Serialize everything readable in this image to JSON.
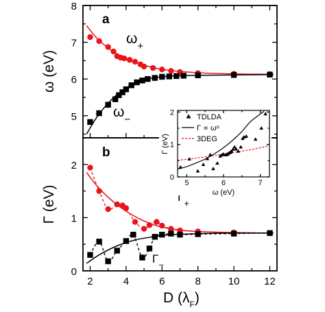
{
  "chart_data": [
    {
      "type": "scatter",
      "panel_label": "a",
      "xlabel": "D (λF)",
      "ylabel": "ω (eV)",
      "xlim": [
        1.6,
        12.4
      ],
      "ylim": [
        4.4,
        8.0
      ],
      "x_ticks": [
        "2",
        "4",
        "6",
        "8",
        "10",
        "12"
      ],
      "y_ticks": [
        "5",
        "6",
        "7",
        "8"
      ],
      "series": [
        {
          "name": "ω+",
          "color": "#e8141a",
          "marker": "circle",
          "points": [
            [
              2.0,
              7.14
            ],
            [
              2.5,
              7.03
            ],
            [
              3.0,
              6.87
            ],
            [
              3.3,
              6.75
            ],
            [
              3.5,
              6.62
            ],
            [
              3.7,
              6.58
            ],
            [
              3.9,
              6.56
            ],
            [
              4.2,
              6.52
            ],
            [
              4.5,
              6.47
            ],
            [
              4.8,
              6.4
            ],
            [
              5.0,
              6.34
            ],
            [
              5.5,
              6.3
            ],
            [
              6.0,
              6.26
            ],
            [
              6.5,
              6.22
            ],
            [
              7.0,
              6.19
            ],
            [
              8.0,
              6.16
            ],
            [
              10.0,
              6.14
            ],
            [
              12.0,
              6.13
            ]
          ],
          "fit": [
            [
              1.8,
              7.45
            ],
            [
              2.5,
              7.05
            ],
            [
              3.5,
              6.68
            ],
            [
              4.5,
              6.45
            ],
            [
              5.5,
              6.31
            ],
            [
              6.5,
              6.23
            ],
            [
              8.0,
              6.17
            ],
            [
              10.0,
              6.14
            ],
            [
              12.2,
              6.13
            ]
          ]
        },
        {
          "name": "ω−",
          "color": "#000000",
          "marker": "square",
          "points": [
            [
              2.0,
              4.83
            ],
            [
              2.5,
              5.07
            ],
            [
              3.0,
              5.3
            ],
            [
              3.4,
              5.45
            ],
            [
              3.6,
              5.56
            ],
            [
              3.8,
              5.64
            ],
            [
              4.0,
              5.72
            ],
            [
              4.3,
              5.83
            ],
            [
              4.6,
              5.91
            ],
            [
              4.9,
              5.96
            ],
            [
              5.2,
              6.0
            ],
            [
              5.6,
              6.03
            ],
            [
              6.0,
              6.06
            ],
            [
              6.4,
              6.07
            ],
            [
              6.8,
              6.08
            ],
            [
              7.2,
              6.09
            ],
            [
              8.0,
              6.1
            ],
            [
              10.0,
              6.11
            ],
            [
              12.0,
              6.12
            ]
          ],
          "fit": [
            [
              1.8,
              4.5
            ],
            [
              2.5,
              5.05
            ],
            [
              3.5,
              5.58
            ],
            [
              4.5,
              5.89
            ],
            [
              5.5,
              6.03
            ],
            [
              6.5,
              6.08
            ],
            [
              8.0,
              6.1
            ],
            [
              10.0,
              6.11
            ],
            [
              12.2,
              6.12
            ]
          ]
        }
      ]
    },
    {
      "type": "scatter",
      "panel_label": "b",
      "xlabel": "D (λF)",
      "ylabel": "Γ (eV)",
      "xlim": [
        1.6,
        12.4
      ],
      "ylim": [
        0.0,
        2.5
      ],
      "x_ticks": [
        "2",
        "4",
        "6",
        "8",
        "10",
        "12"
      ],
      "y_ticks": [
        "0",
        "1",
        "2"
      ],
      "series": [
        {
          "name": "Γ+",
          "color": "#e8141a",
          "marker": "circle",
          "points": [
            [
              2.0,
              1.94
            ],
            [
              2.5,
              1.5
            ],
            [
              3.0,
              1.16
            ],
            [
              3.5,
              1.25
            ],
            [
              3.8,
              1.23
            ],
            [
              4.0,
              1.18
            ],
            [
              4.5,
              0.92
            ],
            [
              5.0,
              0.79
            ],
            [
              5.3,
              0.86
            ],
            [
              5.7,
              0.92
            ],
            [
              6.0,
              0.85
            ],
            [
              6.5,
              0.79
            ],
            [
              7.0,
              0.76
            ],
            [
              8.0,
              0.74
            ],
            [
              10.0,
              0.72
            ],
            [
              12.0,
              0.71
            ]
          ],
          "fit": [
            [
              1.8,
              1.85
            ],
            [
              2.5,
              1.55
            ],
            [
              3.5,
              1.24
            ],
            [
              4.5,
              1.02
            ],
            [
              5.5,
              0.87
            ],
            [
              6.5,
              0.79
            ],
            [
              8.0,
              0.74
            ],
            [
              10.0,
              0.72
            ],
            [
              12.2,
              0.71
            ]
          ]
        },
        {
          "name": "Γ−",
          "color": "#000000",
          "marker": "square",
          "points": [
            [
              2.0,
              0.3
            ],
            [
              2.5,
              0.55
            ],
            [
              3.0,
              0.18
            ],
            [
              3.5,
              0.38
            ],
            [
              4.0,
              0.56
            ],
            [
              4.4,
              0.68
            ],
            [
              4.9,
              0.25
            ],
            [
              5.3,
              0.42
            ],
            [
              5.6,
              0.64
            ],
            [
              6.0,
              0.68
            ],
            [
              6.5,
              0.7
            ],
            [
              7.0,
              0.68
            ],
            [
              8.0,
              0.69
            ],
            [
              10.0,
              0.7
            ],
            [
              12.0,
              0.71
            ]
          ],
          "fit": [
            [
              1.8,
              0.14
            ],
            [
              2.5,
              0.3
            ],
            [
              3.5,
              0.47
            ],
            [
              4.5,
              0.58
            ],
            [
              5.5,
              0.64
            ],
            [
              6.5,
              0.68
            ],
            [
              8.0,
              0.7
            ],
            [
              10.0,
              0.71
            ],
            [
              12.2,
              0.71
            ]
          ]
        }
      ]
    },
    {
      "type": "scatter",
      "panel_label": "inset",
      "xlabel": "ω (eV)",
      "ylabel": "Γ (eV)",
      "xlim": [
        4.75,
        7.25
      ],
      "ylim": [
        0.0,
        2.05
      ],
      "x_ticks": [
        "5",
        "6",
        "7"
      ],
      "y_ticks": [
        "0",
        "1",
        "2"
      ],
      "legend": "top-left",
      "series": [
        {
          "name": "TDLDA",
          "color": "#000000",
          "marker": "triangle",
          "points": [
            [
              4.83,
              0.3
            ],
            [
              5.07,
              0.55
            ],
            [
              5.3,
              0.18
            ],
            [
              5.45,
              0.38
            ],
            [
              5.56,
              0.56
            ],
            [
              5.64,
              0.68
            ],
            [
              5.72,
              0.25
            ],
            [
              5.83,
              0.42
            ],
            [
              5.91,
              0.64
            ],
            [
              5.96,
              0.68
            ],
            [
              6.0,
              0.7
            ],
            [
              6.06,
              0.68
            ],
            [
              6.1,
              0.69
            ],
            [
              6.12,
              0.71
            ],
            [
              6.16,
              0.74
            ],
            [
              6.19,
              0.76
            ],
            [
              6.22,
              0.79
            ],
            [
              6.26,
              0.85
            ],
            [
              6.3,
              0.92
            ],
            [
              6.34,
              0.86
            ],
            [
              6.4,
              0.79
            ],
            [
              6.47,
              0.92
            ],
            [
              6.52,
              1.18
            ],
            [
              6.56,
              1.23
            ],
            [
              6.62,
              1.25
            ],
            [
              6.87,
              1.16
            ],
            [
              7.03,
              1.5
            ],
            [
              7.14,
              1.94
            ]
          ]
        },
        {
          "name": "Γ ∝ ω⁶",
          "color": "#000000",
          "style": "solid",
          "points": [
            [
              4.75,
              0.24
            ],
            [
              5.0,
              0.32
            ],
            [
              5.25,
              0.43
            ],
            [
              5.5,
              0.55
            ],
            [
              5.75,
              0.71
            ],
            [
              6.0,
              0.9
            ],
            [
              6.25,
              1.13
            ],
            [
              6.5,
              1.4
            ],
            [
              6.75,
              1.72
            ],
            [
              7.1,
              2.02
            ]
          ]
        },
        {
          "name": "3DEG",
          "color": "#e8141a",
          "style": "dashed",
          "points": [
            [
              4.75,
              0.51
            ],
            [
              5.25,
              0.58
            ],
            [
              5.75,
              0.66
            ],
            [
              6.25,
              0.75
            ],
            [
              6.75,
              0.84
            ],
            [
              7.2,
              0.95
            ]
          ]
        }
      ]
    }
  ]
}
